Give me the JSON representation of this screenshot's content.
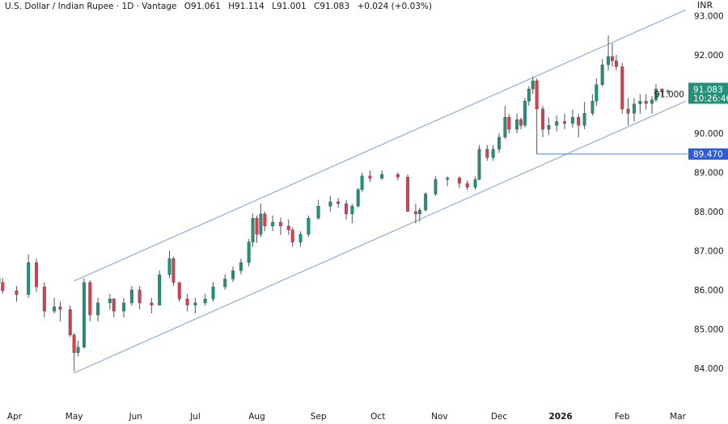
{
  "header": {
    "symbol": "U.S. Dollar / Indian Rupee · 1D · Vantage",
    "open": "O91.061",
    "high": "H91.114",
    "low": "L91.001",
    "close": "C91.083",
    "change": "+0.024 (+0.03%)"
  },
  "currency_label": "INR",
  "price_tag": {
    "price": "91.083",
    "countdown": "10:26:46",
    "color": "#22917a"
  },
  "level_tag": {
    "price": "89.470",
    "value": 89.47,
    "from": "2025-12-20",
    "color": "#2e5bd8"
  },
  "colors": {
    "up": "#22917a",
    "down": "#d2434f",
    "channel": "#7a9fd9"
  },
  "chart_data": {
    "type": "candlestick",
    "ylim": [
      83.6,
      93.4
    ],
    "xlim": [
      "2025-03-24",
      "2026-03-06"
    ],
    "y_ticks": [
      "84.000",
      "85.000",
      "86.000",
      "87.000",
      "88.000",
      "89.000",
      "90.000",
      "91.000",
      "92.000",
      "93.000"
    ],
    "x_ticks": [
      {
        "label": "Apr",
        "date": "2025-04-01"
      },
      {
        "label": "May",
        "date": "2025-05-01"
      },
      {
        "label": "Jun",
        "date": "2025-06-01"
      },
      {
        "label": "Jul",
        "date": "2025-07-01"
      },
      {
        "label": "Aug",
        "date": "2025-08-01"
      },
      {
        "label": "Sep",
        "date": "2025-09-01"
      },
      {
        "label": "Oct",
        "date": "2025-10-01"
      },
      {
        "label": "Nov",
        "date": "2025-11-01"
      },
      {
        "label": "Dec",
        "date": "2025-12-01"
      },
      {
        "label": "2026",
        "date": "2026-01-01",
        "bold": true
      },
      {
        "label": "Feb",
        "date": "2026-02-01"
      },
      {
        "label": "Mar",
        "date": "2026-03-01"
      }
    ],
    "channel": {
      "upper": [
        [
          "2025-05-01",
          86.23
        ],
        [
          "2026-03-05",
          93.15
        ]
      ],
      "lower": [
        [
          "2025-05-01",
          83.88
        ],
        [
          "2026-03-05",
          90.82
        ]
      ]
    },
    "candles_fields": [
      "date",
      "open",
      "high",
      "low",
      "close"
    ],
    "candles": [
      [
        "2025-03-24",
        86.3,
        86.45,
        86.0,
        86.19
      ],
      [
        "2025-03-26",
        86.19,
        86.3,
        85.9,
        85.98
      ],
      [
        "2025-04-02",
        85.98,
        86.1,
        85.7,
        85.88
      ],
      [
        "2025-04-08",
        85.88,
        86.9,
        85.8,
        86.7
      ],
      [
        "2025-04-12",
        86.7,
        86.8,
        85.95,
        86.08
      ],
      [
        "2025-04-16",
        86.08,
        86.2,
        85.3,
        85.46
      ],
      [
        "2025-04-21",
        85.46,
        85.8,
        85.4,
        85.57
      ],
      [
        "2025-04-24",
        85.57,
        85.7,
        85.2,
        85.5
      ],
      [
        "2025-04-29",
        85.5,
        85.6,
        84.8,
        84.85
      ],
      [
        "2025-05-01",
        84.85,
        84.9,
        83.92,
        84.4
      ],
      [
        "2025-05-03",
        84.4,
        84.7,
        84.3,
        84.54
      ],
      [
        "2025-05-06",
        84.54,
        86.3,
        84.5,
        86.19
      ],
      [
        "2025-05-09",
        86.19,
        86.25,
        85.2,
        85.36
      ],
      [
        "2025-05-13",
        85.36,
        85.8,
        85.2,
        85.67
      ],
      [
        "2025-05-19",
        85.67,
        85.9,
        85.5,
        85.77
      ],
      [
        "2025-05-21",
        85.77,
        85.8,
        85.3,
        85.46
      ],
      [
        "2025-05-26",
        85.46,
        85.8,
        85.3,
        85.67
      ],
      [
        "2025-05-30",
        85.67,
        86.1,
        85.6,
        86.0
      ],
      [
        "2025-06-03",
        86.0,
        86.1,
        85.5,
        85.67
      ],
      [
        "2025-06-09",
        85.67,
        85.8,
        85.4,
        85.61
      ],
      [
        "2025-06-13",
        85.61,
        86.5,
        85.6,
        86.39
      ],
      [
        "2025-06-18",
        86.39,
        87.0,
        86.3,
        86.8
      ],
      [
        "2025-06-20",
        86.8,
        86.85,
        86.1,
        86.19
      ],
      [
        "2025-06-23",
        86.19,
        86.2,
        85.7,
        85.77
      ],
      [
        "2025-06-27",
        85.77,
        85.9,
        85.45,
        85.61
      ],
      [
        "2025-07-01",
        85.61,
        85.8,
        85.4,
        85.67
      ],
      [
        "2025-07-06",
        85.67,
        85.9,
        85.6,
        85.77
      ],
      [
        "2025-07-10",
        85.77,
        86.2,
        85.7,
        86.08
      ],
      [
        "2025-07-16",
        86.08,
        86.4,
        86.0,
        86.28
      ],
      [
        "2025-07-20",
        86.28,
        86.6,
        86.2,
        86.49
      ],
      [
        "2025-07-24",
        86.49,
        86.8,
        86.4,
        86.7
      ],
      [
        "2025-07-28",
        86.7,
        87.3,
        86.6,
        87.22
      ],
      [
        "2025-07-30",
        87.22,
        87.95,
        87.1,
        87.83
      ],
      [
        "2025-08-01",
        87.83,
        87.9,
        87.2,
        87.42
      ],
      [
        "2025-08-03",
        87.42,
        88.2,
        87.35,
        87.94
      ],
      [
        "2025-08-05",
        87.94,
        88.0,
        87.5,
        87.63
      ],
      [
        "2025-08-09",
        87.63,
        87.9,
        87.5,
        87.73
      ],
      [
        "2025-08-13",
        87.73,
        87.85,
        87.4,
        87.63
      ],
      [
        "2025-08-17",
        87.63,
        87.8,
        87.4,
        87.53
      ],
      [
        "2025-08-19",
        87.53,
        87.6,
        87.1,
        87.22
      ],
      [
        "2025-08-23",
        87.22,
        87.5,
        87.1,
        87.42
      ],
      [
        "2025-08-27",
        87.42,
        87.9,
        87.35,
        87.83
      ],
      [
        "2025-09-01",
        87.83,
        88.3,
        87.8,
        88.14
      ],
      [
        "2025-09-07",
        88.14,
        88.4,
        88.0,
        88.25
      ],
      [
        "2025-09-11",
        88.25,
        88.35,
        88.1,
        88.2
      ],
      [
        "2025-09-15",
        88.2,
        88.3,
        87.8,
        87.94
      ],
      [
        "2025-09-18",
        87.94,
        88.2,
        87.7,
        88.14
      ],
      [
        "2025-09-21",
        88.14,
        88.6,
        88.1,
        88.56
      ],
      [
        "2025-09-23",
        88.56,
        89.0,
        88.5,
        88.91
      ],
      [
        "2025-09-27",
        88.91,
        89.05,
        88.75,
        88.85
      ],
      [
        "2025-10-03",
        88.85,
        89.05,
        88.8,
        88.95
      ],
      [
        "2025-10-11",
        88.95,
        89.0,
        88.8,
        88.88
      ],
      [
        "2025-10-16",
        88.88,
        88.95,
        88.0,
        88.0
      ],
      [
        "2025-10-20",
        88.0,
        88.2,
        87.7,
        87.94
      ],
      [
        "2025-10-22",
        87.94,
        88.1,
        87.75,
        88.04
      ],
      [
        "2025-10-25",
        88.04,
        88.5,
        88.0,
        88.45
      ],
      [
        "2025-10-30",
        88.45,
        88.9,
        88.4,
        88.82
      ],
      [
        "2025-11-05",
        88.82,
        88.9,
        88.65,
        88.86
      ],
      [
        "2025-11-11",
        88.86,
        88.9,
        88.6,
        88.72
      ],
      [
        "2025-11-15",
        88.72,
        88.8,
        88.55,
        88.62
      ],
      [
        "2025-11-19",
        88.62,
        88.9,
        88.55,
        88.82
      ],
      [
        "2025-11-21",
        88.82,
        89.7,
        88.8,
        89.59
      ],
      [
        "2025-11-25",
        89.59,
        89.7,
        89.3,
        89.38
      ],
      [
        "2025-11-28",
        89.38,
        89.7,
        89.3,
        89.59
      ],
      [
        "2025-12-01",
        89.59,
        90.0,
        89.5,
        89.9
      ],
      [
        "2025-12-04",
        89.9,
        90.7,
        89.85,
        90.41
      ],
      [
        "2025-12-06",
        90.41,
        90.5,
        90.0,
        90.1
      ],
      [
        "2025-12-10",
        90.1,
        90.5,
        90.0,
        90.35
      ],
      [
        "2025-12-12",
        90.35,
        90.4,
        90.1,
        90.2
      ],
      [
        "2025-12-14",
        90.2,
        90.9,
        90.15,
        90.82
      ],
      [
        "2025-12-16",
        90.82,
        91.2,
        90.7,
        91.13
      ],
      [
        "2025-12-18",
        91.13,
        91.45,
        91.0,
        91.34
      ],
      [
        "2025-12-20",
        91.34,
        91.4,
        89.47,
        90.62
      ],
      [
        "2025-12-23",
        90.62,
        90.7,
        89.9,
        90.1
      ],
      [
        "2025-12-26",
        90.1,
        90.4,
        89.95,
        90.2
      ],
      [
        "2025-12-30",
        90.2,
        90.45,
        90.05,
        90.3
      ],
      [
        "2026-01-03",
        90.3,
        90.5,
        90.1,
        90.25
      ],
      [
        "2026-01-07",
        90.25,
        90.6,
        90.15,
        90.41
      ],
      [
        "2026-01-10",
        90.41,
        90.5,
        89.9,
        90.2
      ],
      [
        "2026-01-13",
        90.2,
        90.8,
        90.1,
        90.51
      ],
      [
        "2026-01-17",
        90.51,
        91.0,
        90.45,
        90.82
      ],
      [
        "2026-01-19",
        90.82,
        91.4,
        90.7,
        91.24
      ],
      [
        "2026-01-22",
        91.24,
        91.9,
        91.2,
        91.75
      ],
      [
        "2026-01-25",
        91.75,
        92.5,
        91.6,
        91.96
      ],
      [
        "2026-01-27",
        91.96,
        92.3,
        91.7,
        91.85
      ],
      [
        "2026-01-29",
        91.85,
        92.0,
        91.6,
        91.7
      ],
      [
        "2026-02-01",
        91.7,
        91.8,
        90.5,
        90.62
      ],
      [
        "2026-02-04",
        90.62,
        90.9,
        90.2,
        90.51
      ],
      [
        "2026-02-07",
        90.51,
        90.9,
        90.3,
        90.75
      ],
      [
        "2026-02-10",
        90.75,
        91.0,
        90.5,
        90.82
      ],
      [
        "2026-02-13",
        90.82,
        91.0,
        90.6,
        90.76
      ],
      [
        "2026-02-16",
        90.76,
        90.95,
        90.5,
        90.85
      ],
      [
        "2026-02-18",
        90.85,
        91.25,
        90.8,
        91.13
      ],
      [
        "2026-02-21",
        91.13,
        91.15,
        90.95,
        91.06
      ],
      [
        "2026-02-24",
        91.061,
        91.114,
        91.001,
        91.083
      ]
    ]
  }
}
